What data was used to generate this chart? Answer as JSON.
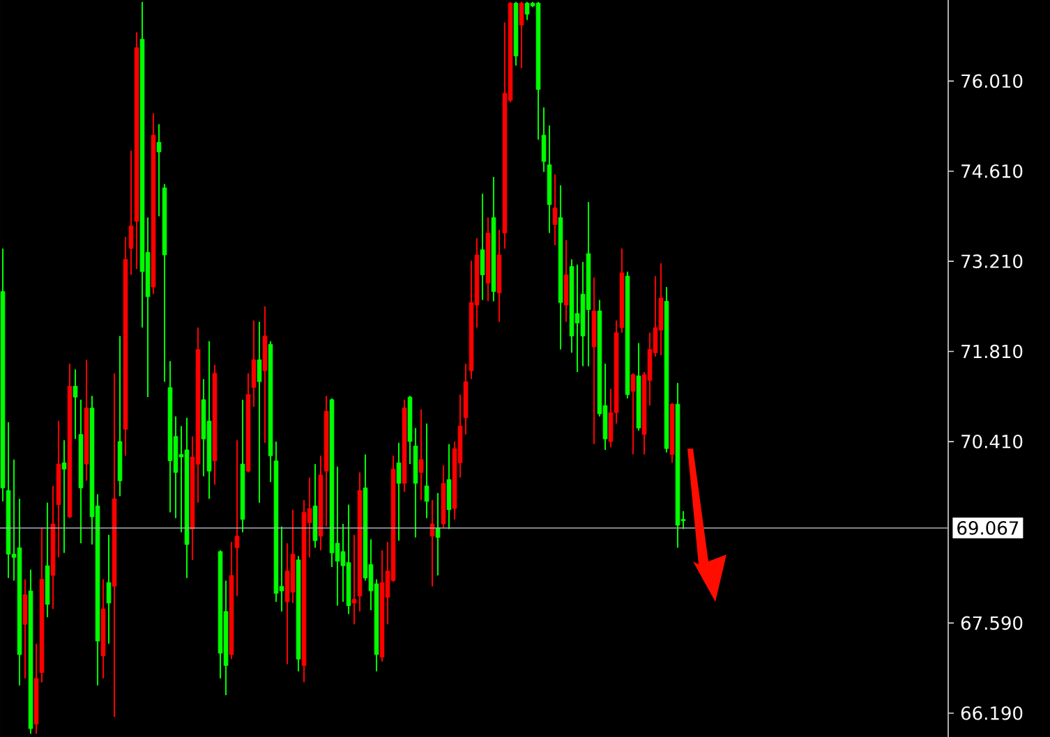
{
  "chart_data": {
    "type": "candlestick",
    "categories": [
      null,
      null,
      null,
      null,
      null,
      null,
      null,
      null,
      null,
      null,
      null,
      null,
      null,
      null,
      null,
      null,
      null,
      null,
      null,
      null,
      null,
      null,
      null,
      null,
      null,
      null,
      null,
      null,
      null,
      null,
      null,
      null,
      null,
      null,
      null,
      null,
      null,
      null,
      null,
      null,
      null,
      null,
      null,
      null,
      null,
      null,
      null,
      null,
      null,
      null,
      null,
      null,
      null,
      null,
      null,
      null,
      null,
      null,
      null,
      null,
      null,
      null,
      null,
      null,
      null,
      null,
      null,
      null,
      null,
      null,
      null,
      null,
      null,
      null,
      null,
      null,
      null,
      null,
      null,
      null,
      null,
      null,
      null,
      null,
      null,
      null,
      null,
      null,
      null,
      null,
      null,
      null,
      null,
      null,
      null,
      null,
      null,
      null,
      null,
      null,
      null,
      null,
      null,
      null,
      null,
      null,
      null,
      null,
      null,
      null,
      null,
      null,
      null,
      null,
      null,
      null,
      null,
      null,
      null,
      null,
      null,
      null,
      null,
      null,
      null,
      null,
      null,
      null,
      null,
      null,
      null,
      null,
      null,
      null,
      null,
      null,
      null,
      null,
      null,
      null,
      null,
      null,
      null,
      null,
      null,
      null,
      null,
      null,
      null,
      null,
      null,
      null,
      null,
      null,
      null,
      null,
      null,
      null,
      null,
      null,
      null,
      null,
      null,
      null,
      null,
      null,
      null,
      null,
      null,
      null
    ],
    "ohlc": [
      [
        72.74,
        73.41,
        69.48,
        69.69
      ],
      [
        69.65,
        70.71,
        68.29,
        68.66
      ],
      [
        68.66,
        70.13,
        68.25,
        68.61
      ],
      [
        68.76,
        69.52,
        66.62,
        67.1
      ],
      [
        67.57,
        68.27,
        66.73,
        68.03
      ],
      [
        68.09,
        68.42,
        65.87,
        65.95
      ],
      [
        66.02,
        67.27,
        65.87,
        66.73
      ],
      [
        66.82,
        69.07,
        66.67,
        68.27
      ],
      [
        68.48,
        69.46,
        67.68,
        67.88
      ],
      [
        68.33,
        69.72,
        67.81,
        69.13
      ],
      [
        69.43,
        70.73,
        68.61,
        70.06
      ],
      [
        70.08,
        70.43,
        68.68,
        69.98
      ],
      [
        69.24,
        71.62,
        69.22,
        71.27
      ],
      [
        71.27,
        71.53,
        70.45,
        71.1
      ],
      [
        70.52,
        71.06,
        68.83,
        69.69
      ],
      [
        70.06,
        71.68,
        69.8,
        70.93
      ],
      [
        70.93,
        71.12,
        68.81,
        69.24
      ],
      [
        69.41,
        69.59,
        66.62,
        67.31
      ],
      [
        67.08,
        68.27,
        66.73,
        67.81
      ],
      [
        68.22,
        68.96,
        67.27,
        67.9
      ],
      [
        68.16,
        71.47,
        66.13,
        69.52
      ],
      [
        70.41,
        72.05,
        69.56,
        69.8
      ],
      [
        70.6,
        73.59,
        70.19,
        73.24
      ],
      [
        73.41,
        74.93,
        73.0,
        73.76
      ],
      [
        73.83,
        76.77,
        73.09,
        76.53
      ],
      [
        76.66,
        77.24,
        72.18,
        73.05
      ],
      [
        73.35,
        73.89,
        71.1,
        72.66
      ],
      [
        72.81,
        75.51,
        72.7,
        75.17
      ],
      [
        75.06,
        75.34,
        73.91,
        74.91
      ],
      [
        74.35,
        74.41,
        71.34,
        73.31
      ],
      [
        71.25,
        71.66,
        69.31,
        70.11
      ],
      [
        70.49,
        70.8,
        69.22,
        69.93
      ],
      [
        70.21,
        70.65,
        69.0,
        70.17
      ],
      [
        70.28,
        70.78,
        68.29,
        68.81
      ],
      [
        69.05,
        70.49,
        68.57,
        70.17
      ],
      [
        70.06,
        72.18,
        69.46,
        71.84
      ],
      [
        71.06,
        71.38,
        69.87,
        70.45
      ],
      [
        70.73,
        71.97,
        69.52,
        69.95
      ],
      [
        70.11,
        71.6,
        69.74,
        71.47
      ],
      [
        68.7,
        68.72,
        66.73,
        67.12
      ],
      [
        67.77,
        68.25,
        66.47,
        66.93
      ],
      [
        67.1,
        68.85,
        67.03,
        68.33
      ],
      [
        68.76,
        70.43,
        68.01,
        68.94
      ],
      [
        70.06,
        71.06,
        69.0,
        69.2
      ],
      [
        69.95,
        71.47,
        69.93,
        71.14
      ],
      [
        71.25,
        72.29,
        70.95,
        71.68
      ],
      [
        71.68,
        72.27,
        69.46,
        71.34
      ],
      [
        71.51,
        72.51,
        70.39,
        72.05
      ],
      [
        71.92,
        71.97,
        69.78,
        70.19
      ],
      [
        70.11,
        70.41,
        67.92,
        68.05
      ],
      [
        68.16,
        69.09,
        67.77,
        68.09
      ],
      [
        67.92,
        68.83,
        66.95,
        68.4
      ],
      [
        68.07,
        69.35,
        67.9,
        68.66
      ],
      [
        68.57,
        68.63,
        66.84,
        67.03
      ],
      [
        66.93,
        69.5,
        66.67,
        69.31
      ],
      [
        69.15,
        69.85,
        68.61,
        69.37
      ],
      [
        69.41,
        70.06,
        68.76,
        68.87
      ],
      [
        68.94,
        70.19,
        68.72,
        69.89
      ],
      [
        69.95,
        71.12,
        69.09,
        70.88
      ],
      [
        71.06,
        71.08,
        68.46,
        68.68
      ],
      [
        68.83,
        70.02,
        67.86,
        68.55
      ],
      [
        68.7,
        69.13,
        67.92,
        68.48
      ],
      [
        68.53,
        69.43,
        67.73,
        67.86
      ],
      [
        67.9,
        68.96,
        67.57,
        67.96
      ],
      [
        68.01,
        69.93,
        67.77,
        69.65
      ],
      [
        69.69,
        70.21,
        68.25,
        68.29
      ],
      [
        68.5,
        68.89,
        67.79,
        68.09
      ],
      [
        68.2,
        68.27,
        66.84,
        67.1
      ],
      [
        67.06,
        68.72,
        66.99,
        68.22
      ],
      [
        67.99,
        68.85,
        67.57,
        68.4
      ],
      [
        68.25,
        70.19,
        68.23,
        69.98
      ],
      [
        70.08,
        70.39,
        68.87,
        69.76
      ],
      [
        69.76,
        71.06,
        69.63,
        70.93
      ],
      [
        71.1,
        71.12,
        70.06,
        70.41
      ],
      [
        70.34,
        70.62,
        68.92,
        69.76
      ],
      [
        69.93,
        70.91,
        69.5,
        70.13
      ],
      [
        69.72,
        70.69,
        69.22,
        69.48
      ],
      [
        68.94,
        69.5,
        68.16,
        69.13
      ],
      [
        69.07,
        69.61,
        68.33,
        68.92
      ],
      [
        69.13,
        70.04,
        69.07,
        69.76
      ],
      [
        69.82,
        70.37,
        69.05,
        69.35
      ],
      [
        69.37,
        70.41,
        69.2,
        70.3
      ],
      [
        70.08,
        71.14,
        69.85,
        70.65
      ],
      [
        70.78,
        71.62,
        70.52,
        71.34
      ],
      [
        71.51,
        73.22,
        71.38,
        72.57
      ],
      [
        72.53,
        73.57,
        72.18,
        73.31
      ],
      [
        73.39,
        74.26,
        72.61,
        73.0
      ],
      [
        72.87,
        73.89,
        72.59,
        73.65
      ],
      [
        73.89,
        74.52,
        72.59,
        72.74
      ],
      [
        72.72,
        73.7,
        72.27,
        73.31
      ],
      [
        73.65,
        76.92,
        73.41,
        75.82
      ],
      [
        75.71,
        77.24,
        75.68,
        77.22
      ],
      [
        77.22,
        77.24,
        76.25,
        76.4
      ],
      [
        76.88,
        77.24,
        76.21,
        77.22
      ],
      [
        77.22,
        77.24,
        76.96,
        77.05
      ],
      [
        77.22,
        77.24,
        77.16,
        77.18
      ],
      [
        77.22,
        77.24,
        75.1,
        75.88
      ],
      [
        75.17,
        75.6,
        74.6,
        74.76
      ],
      [
        74.71,
        75.32,
        73.65,
        74.09
      ],
      [
        73.78,
        74.56,
        73.46,
        74.04
      ],
      [
        73.89,
        74.39,
        71.84,
        72.57
      ],
      [
        72.53,
        73.54,
        72.27,
        73.0
      ],
      [
        73.13,
        73.24,
        71.79,
        72.05
      ],
      [
        72.4,
        73.16,
        71.49,
        72.25
      ],
      [
        72.7,
        73.2,
        71.58,
        72.05
      ],
      [
        73.33,
        74.13,
        71.58,
        72.46
      ],
      [
        71.88,
        72.96,
        70.37,
        72.44
      ],
      [
        72.44,
        72.61,
        70.8,
        70.84
      ],
      [
        70.97,
        71.62,
        70.28,
        70.45
      ],
      [
        70.41,
        71.23,
        70.32,
        70.86
      ],
      [
        70.86,
        72.29,
        70.69,
        72.1
      ],
      [
        72.18,
        73.41,
        72.1,
        73.03
      ],
      [
        72.98,
        73.05,
        71.08,
        71.14
      ],
      [
        71.19,
        71.47,
        70.21,
        71.45
      ],
      [
        71.43,
        71.94,
        70.58,
        70.62
      ],
      [
        70.52,
        71.49,
        70.21,
        71.45
      ],
      [
        71.36,
        72.1,
        70.97,
        71.84
      ],
      [
        71.79,
        72.98,
        71.73,
        72.18
      ],
      [
        72.14,
        73.18,
        71.75,
        72.64
      ],
      [
        72.59,
        72.81,
        70.24,
        70.3
      ],
      [
        70.21,
        71.01,
        70.08,
        70.99
      ],
      [
        70.99,
        71.32,
        68.76,
        69.11
      ],
      [
        69.2,
        69.33,
        69.05,
        69.18
      ],
      null,
      null,
      null,
      null,
      null,
      null,
      null,
      null,
      null,
      null,
      null,
      null,
      null,
      null,
      null,
      null,
      null,
      null,
      null,
      null,
      null,
      null,
      null,
      null,
      null,
      null,
      null,
      null,
      null,
      null,
      null,
      null,
      null,
      null,
      null,
      null,
      null,
      null,
      null,
      null,
      null,
      null,
      null,
      null,
      null,
      null,
      null
    ],
    "colors": [
      "#00ff00",
      "#00ff00",
      "#00ff00",
      "#00ff00",
      "#ff0000",
      "#00ff00",
      "#ff0000",
      "#ff0000",
      "#00ff00",
      "#ff0000",
      "#ff0000",
      "#00ff00",
      "#ff0000",
      "#00ff00",
      "#00ff00",
      "#ff0000",
      "#00ff00",
      "#00ff00",
      "#ff0000",
      "#00ff00",
      "#ff0000",
      "#00ff00",
      "#ff0000",
      "#ff0000",
      "#ff0000",
      "#00ff00",
      "#00ff00",
      "#ff0000",
      "#00ff00",
      "#00ff00",
      "#00ff00",
      "#00ff00",
      "#00ff00",
      "#00ff00",
      "#ff0000",
      "#ff0000",
      "#00ff00",
      "#00ff00",
      "#ff0000",
      "#00ff00",
      "#00ff00",
      "#ff0000",
      "#ff0000",
      "#00ff00",
      "#ff0000",
      "#ff0000",
      "#00ff00",
      "#ff0000",
      "#00ff00",
      "#00ff00",
      "#00ff00",
      "#ff0000",
      "#ff0000",
      "#00ff00",
      "#ff0000",
      "#ff0000",
      "#00ff00",
      "#ff0000",
      "#ff0000",
      "#00ff00",
      "#00ff00",
      "#00ff00",
      "#00ff00",
      "#ff0000",
      "#ff0000",
      "#00ff00",
      "#00ff00",
      "#00ff00",
      "#ff0000",
      "#ff0000",
      "#ff0000",
      "#00ff00",
      "#ff0000",
      "#00ff00",
      "#00ff00",
      "#ff0000",
      "#00ff00",
      "#ff0000",
      "#00ff00",
      "#ff0000",
      "#00ff00",
      "#ff0000",
      "#ff0000",
      "#ff0000",
      "#ff0000",
      "#ff0000",
      "#00ff00",
      "#ff0000",
      "#00ff00",
      "#ff0000",
      "#ff0000",
      "#ff0000",
      "#00ff00",
      "#ff0000",
      "#00ff00",
      "#00ff00",
      "#00ff00",
      "#00ff00",
      "#00ff00",
      "#ff0000",
      "#00ff00",
      "#ff0000",
      "#00ff00",
      "#00ff00",
      "#00ff00",
      "#00ff00",
      "#ff0000",
      "#00ff00",
      "#00ff00",
      "#ff0000",
      "#ff0000",
      "#ff0000",
      "#00ff00",
      "#ff0000",
      "#00ff00",
      "#ff0000",
      "#ff0000",
      "#ff0000",
      "#ff0000",
      "#00ff00",
      "#ff0000",
      "#00ff00",
      "#00ff00",
      null,
      null,
      null,
      null,
      null,
      null,
      null,
      null,
      null,
      null,
      null,
      null,
      null,
      null,
      null,
      null,
      null,
      null,
      null,
      null,
      null,
      null,
      null,
      null,
      null,
      null,
      null,
      null,
      null,
      null,
      null,
      null,
      null,
      null,
      null,
      null,
      null,
      null,
      null,
      null,
      null,
      null,
      null,
      null,
      null,
      null,
      null
    ],
    "ylim": [
      65.82,
      77.27
    ],
    "yticks": [
      {
        "value": 66.19,
        "label": "66.190"
      },
      {
        "value": 67.59,
        "label": "67.590"
      },
      {
        "value": 70.41,
        "label": "70.410"
      },
      {
        "value": 71.81,
        "label": "71.810"
      },
      {
        "value": 73.21,
        "label": "73.210"
      },
      {
        "value": 74.61,
        "label": "74.610"
      },
      {
        "value": 76.01,
        "label": "76.010"
      }
    ],
    "ref_lines": [
      {
        "axis": "y",
        "value": 69.067,
        "label": "69.067",
        "color": "#a8b0bc"
      }
    ],
    "tick_labels": "y"
  }
}
